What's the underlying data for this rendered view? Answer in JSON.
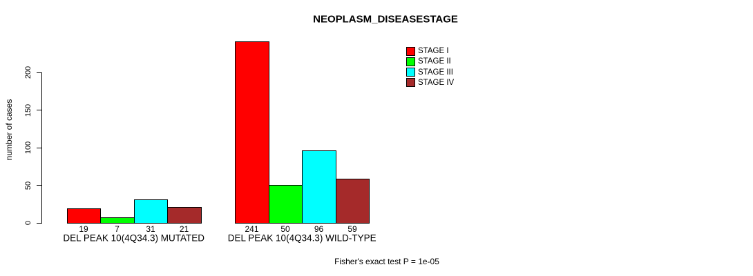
{
  "chart_data": {
    "type": "bar",
    "title": "NEOPLASM_DISEASESTAGE",
    "ylabel": "number of cases",
    "yticks": [
      0,
      50,
      100,
      150,
      200
    ],
    "ylim": [
      0,
      241
    ],
    "grid": false,
    "legend_position": "top-right",
    "categories": [
      "DEL PEAK 10(4Q34.3) MUTATED",
      "DEL PEAK 10(4Q34.3) WILD-TYPE"
    ],
    "series": [
      {
        "name": "STAGE I",
        "color": "#FF0000",
        "values": [
          19,
          241
        ]
      },
      {
        "name": "STAGE II",
        "color": "#00FF00",
        "values": [
          7,
          50
        ]
      },
      {
        "name": "STAGE III",
        "color": "#00FFFF",
        "values": [
          31,
          96
        ]
      },
      {
        "name": "STAGE IV",
        "color": "#A52A2A",
        "values": [
          21,
          59
        ]
      }
    ],
    "bar_value_labels_shown": true,
    "annotation": "Fisher's exact test P = 1e-05",
    "axis_color": "#000000",
    "text_color": "#000000",
    "background_color": "#FFFFFF"
  }
}
